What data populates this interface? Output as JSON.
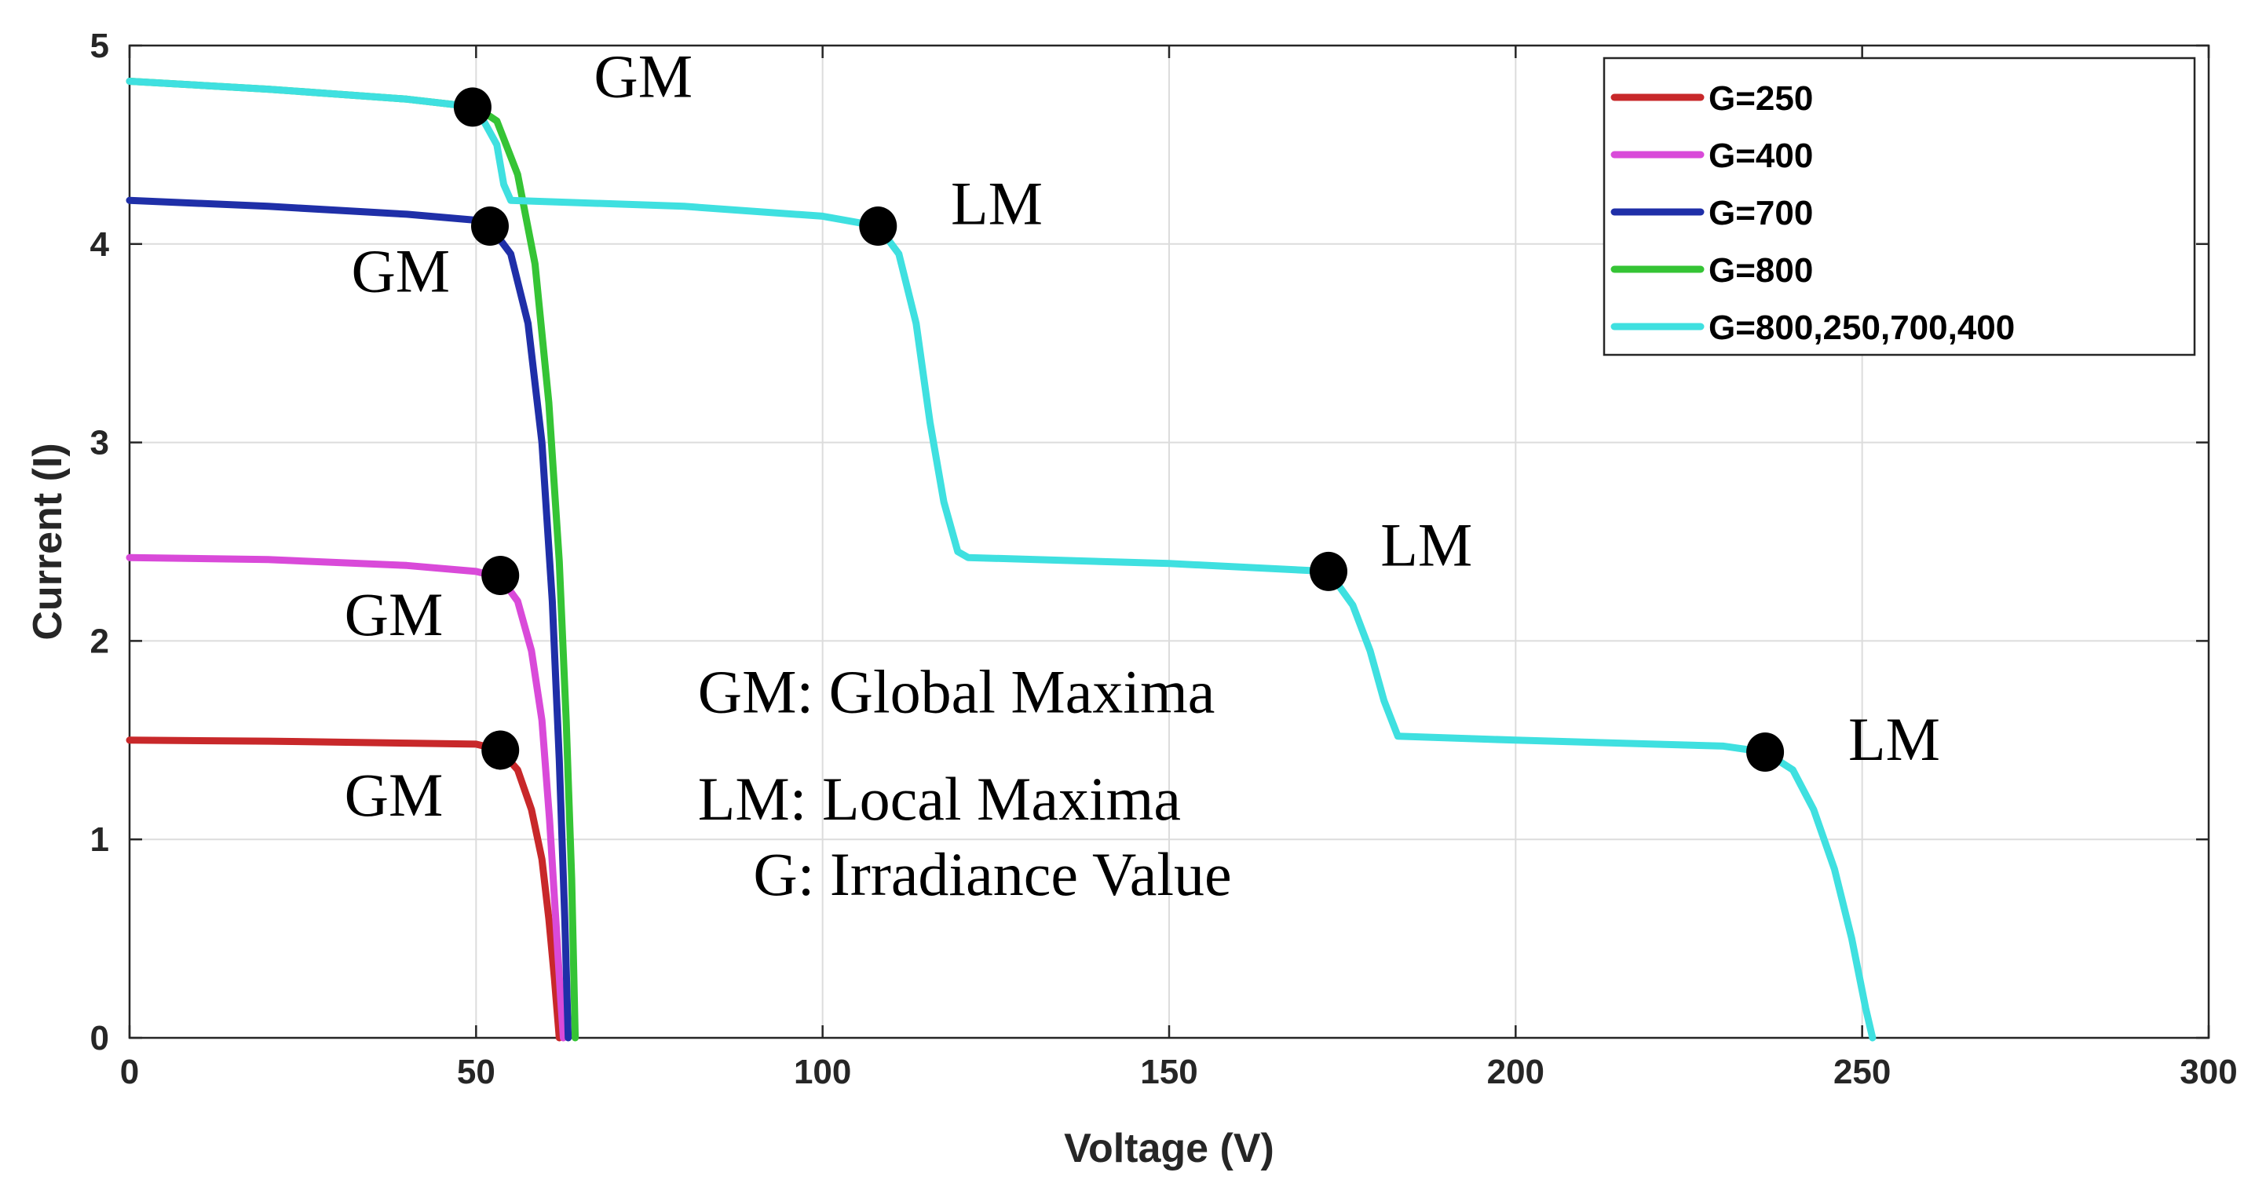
{
  "chart_data": {
    "type": "line",
    "title": "",
    "xlabel": "Voltage (V)",
    "ylabel": "Current (I)",
    "xlim": [
      0,
      300
    ],
    "ylim": [
      0,
      5
    ],
    "xticks": [
      0,
      50,
      100,
      150,
      200,
      250,
      300
    ],
    "yticks": [
      0,
      1,
      2,
      3,
      4,
      5
    ],
    "grid": true,
    "legend_position": "top-right",
    "series": [
      {
        "name": "G=250",
        "color": "#c8282a",
        "points": [
          [
            0,
            1.5
          ],
          [
            20,
            1.495
          ],
          [
            40,
            1.485
          ],
          [
            50,
            1.48
          ],
          [
            53.5,
            1.45
          ],
          [
            56,
            1.35
          ],
          [
            58,
            1.15
          ],
          [
            59.5,
            0.9
          ],
          [
            60.5,
            0.6
          ],
          [
            61.3,
            0.3
          ],
          [
            62,
            0
          ]
        ]
      },
      {
        "name": "G=400",
        "color": "#d94ad9",
        "points": [
          [
            0,
            2.42
          ],
          [
            20,
            2.41
          ],
          [
            40,
            2.38
          ],
          [
            50,
            2.35
          ],
          [
            53.5,
            2.32
          ],
          [
            56,
            2.2
          ],
          [
            58,
            1.95
          ],
          [
            59.5,
            1.6
          ],
          [
            60.6,
            1.1
          ],
          [
            61.5,
            0.6
          ],
          [
            62.2,
            0.2
          ],
          [
            62.6,
            0
          ]
        ]
      },
      {
        "name": "G=700",
        "color": "#1f2fa8",
        "points": [
          [
            0,
            4.22
          ],
          [
            20,
            4.19
          ],
          [
            40,
            4.15
          ],
          [
            50,
            4.12
          ],
          [
            52,
            4.09
          ],
          [
            55,
            3.95
          ],
          [
            57.5,
            3.6
          ],
          [
            59.5,
            3.0
          ],
          [
            61,
            2.2
          ],
          [
            62,
            1.4
          ],
          [
            62.8,
            0.6
          ],
          [
            63.3,
            0
          ]
        ]
      },
      {
        "name": "G=800",
        "color": "#35c435",
        "points": [
          [
            0,
            4.82
          ],
          [
            20,
            4.78
          ],
          [
            40,
            4.73
          ],
          [
            50,
            4.69
          ],
          [
            53,
            4.62
          ],
          [
            56,
            4.35
          ],
          [
            58.5,
            3.9
          ],
          [
            60.5,
            3.2
          ],
          [
            62,
            2.4
          ],
          [
            63,
            1.6
          ],
          [
            63.8,
            0.8
          ],
          [
            64.3,
            0
          ]
        ]
      },
      {
        "name": "G=800,250,700,400",
        "color": "#3fe0e0",
        "points": [
          [
            0,
            4.82
          ],
          [
            20,
            4.78
          ],
          [
            40,
            4.73
          ],
          [
            50,
            4.69
          ],
          [
            53,
            4.5
          ],
          [
            54,
            4.3
          ],
          [
            55,
            4.22
          ],
          [
            80,
            4.19
          ],
          [
            100,
            4.14
          ],
          [
            108,
            4.09
          ],
          [
            111,
            3.95
          ],
          [
            113.5,
            3.6
          ],
          [
            115.5,
            3.1
          ],
          [
            117.5,
            2.7
          ],
          [
            119.5,
            2.45
          ],
          [
            121,
            2.42
          ],
          [
            150,
            2.39
          ],
          [
            173,
            2.35
          ],
          [
            176.5,
            2.18
          ],
          [
            179,
            1.95
          ],
          [
            181,
            1.7
          ],
          [
            183,
            1.52
          ],
          [
            200,
            1.5
          ],
          [
            230,
            1.47
          ],
          [
            236,
            1.44
          ],
          [
            240,
            1.35
          ],
          [
            243,
            1.15
          ],
          [
            246,
            0.85
          ],
          [
            248.5,
            0.5
          ],
          [
            250.5,
            0.15
          ],
          [
            251.5,
            0
          ]
        ]
      }
    ],
    "markers": [
      {
        "label": "GM",
        "x": 49.5,
        "y": 4.69
      },
      {
        "label": "GM",
        "x": 52,
        "y": 4.09
      },
      {
        "label": "GM",
        "x": 53.5,
        "y": 2.33
      },
      {
        "label": "GM",
        "x": 53.5,
        "y": 1.45
      },
      {
        "label": "LM",
        "x": 108,
        "y": 4.09
      },
      {
        "label": "LM",
        "x": 173,
        "y": 2.35
      },
      {
        "label": "LM",
        "x": 236,
        "y": 1.44
      }
    ],
    "annotations": [
      {
        "text": "GM",
        "x": 67,
        "y": 4.74
      },
      {
        "text": "GM",
        "x": 32,
        "y": 3.76
      },
      {
        "text": "GM",
        "x": 31,
        "y": 2.03
      },
      {
        "text": "GM",
        "x": 31,
        "y": 1.12
      },
      {
        "text": "LM",
        "x": 118.5,
        "y": 4.1
      },
      {
        "text": "LM",
        "x": 180.5,
        "y": 2.38
      },
      {
        "text": "LM",
        "x": 248,
        "y": 1.4
      }
    ],
    "info_text": [
      {
        "text": "GM: Global Maxima",
        "x": 82,
        "y": 1.64
      },
      {
        "text": "LM: Local Maxima",
        "x": 82,
        "y": 1.1
      },
      {
        "text": "G: Irradiance Value",
        "x": 90,
        "y": 0.72
      }
    ]
  }
}
